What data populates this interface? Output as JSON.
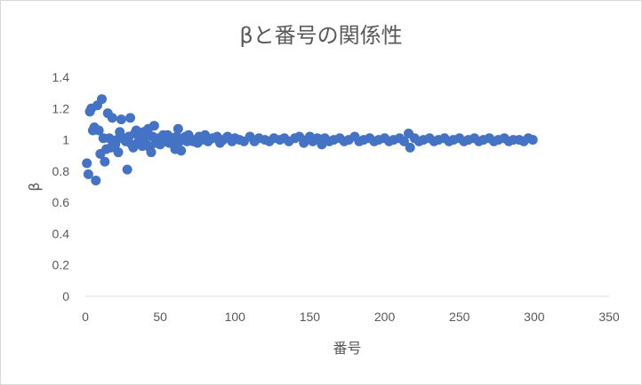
{
  "chart_data": {
    "type": "scatter",
    "title": "βと番号の関係性",
    "xlabel": "番号",
    "ylabel": "β",
    "xlim": [
      0,
      350
    ],
    "ylim": [
      0,
      1.4
    ],
    "x_ticks": [
      0,
      50,
      100,
      150,
      200,
      250,
      300,
      350
    ],
    "y_ticks": [
      0,
      0.2,
      0.4,
      0.6,
      0.8,
      1,
      1.2,
      1.4
    ],
    "x_tick_labels": [
      "0",
      "50",
      "100",
      "150",
      "200",
      "250",
      "300",
      "350"
    ],
    "y_tick_labels": [
      "0",
      "0.2",
      "0.4",
      "0.6",
      "0.8",
      "1",
      "1.2",
      "1.4"
    ],
    "grid": false,
    "legend": "none",
    "marker_color": "#4472C4",
    "series": [
      {
        "points": [
          [
            1,
            0.85
          ],
          [
            2,
            0.78
          ],
          [
            3,
            1.18
          ],
          [
            4,
            1.2
          ],
          [
            5,
            1.06
          ],
          [
            6,
            1.08
          ],
          [
            7,
            0.74
          ],
          [
            8,
            1.22
          ],
          [
            9,
            1.06
          ],
          [
            10,
            0.91
          ],
          [
            11,
            1.26
          ],
          [
            12,
            1.01
          ],
          [
            13,
            0.86
          ],
          [
            14,
            0.94
          ],
          [
            15,
            1.17
          ],
          [
            16,
            1.01
          ],
          [
            17,
            0.95
          ],
          [
            18,
            1.14
          ],
          [
            20,
            0.97
          ],
          [
            21,
            1.0
          ],
          [
            22,
            0.92
          ],
          [
            23,
            1.05
          ],
          [
            24,
            1.13
          ],
          [
            25,
            1.01
          ],
          [
            27,
            0.99
          ],
          [
            28,
            0.81
          ],
          [
            29,
            1.02
          ],
          [
            30,
            1.14
          ],
          [
            31,
            0.97
          ],
          [
            32,
            0.95
          ],
          [
            33,
            1.04
          ],
          [
            34,
            1.06
          ],
          [
            35,
            0.98
          ],
          [
            36,
            1.0
          ],
          [
            37,
            1.03
          ],
          [
            38,
            0.96
          ],
          [
            39,
            1.05
          ],
          [
            40,
            1.02
          ],
          [
            41,
            0.97
          ],
          [
            42,
            1.07
          ],
          [
            43,
            0.95
          ],
          [
            44,
            0.92
          ],
          [
            45,
            1.02
          ],
          [
            46,
            1.09
          ],
          [
            47,
            0.98
          ],
          [
            48,
            1.0
          ],
          [
            49,
            1.01
          ],
          [
            50,
            0.97
          ],
          [
            52,
            1.03
          ],
          [
            53,
            0.99
          ],
          [
            54,
            1.02
          ],
          [
            55,
            1.03
          ],
          [
            56,
            0.98
          ],
          [
            57,
            1.0
          ],
          [
            58,
            1.01
          ],
          [
            59,
            0.97
          ],
          [
            60,
            0.94
          ],
          [
            61,
            1.02
          ],
          [
            62,
            1.07
          ],
          [
            63,
            0.99
          ],
          [
            64,
            0.93
          ],
          [
            65,
            1.01
          ],
          [
            66,
            1.0
          ],
          [
            67,
            1.02
          ],
          [
            68,
            0.99
          ],
          [
            69,
            1.03
          ],
          [
            70,
            1.01
          ],
          [
            72,
            0.99
          ],
          [
            74,
            1.0
          ],
          [
            75,
            0.98
          ],
          [
            76,
            1.02
          ],
          [
            78,
            1.0
          ],
          [
            80,
            1.03
          ],
          [
            82,
            0.99
          ],
          [
            85,
            1.01
          ],
          [
            88,
            1.02
          ],
          [
            90,
            0.98
          ],
          [
            92,
            1.0
          ],
          [
            95,
            1.02
          ],
          [
            98,
            0.99
          ],
          [
            100,
            1.01
          ],
          [
            103,
            1.0
          ],
          [
            106,
            0.99
          ],
          [
            110,
            1.02
          ],
          [
            113,
            0.99
          ],
          [
            116,
            1.01
          ],
          [
            120,
            1.0
          ],
          [
            123,
            0.99
          ],
          [
            126,
            1.01
          ],
          [
            130,
            1.0
          ],
          [
            133,
            1.01
          ],
          [
            136,
            0.99
          ],
          [
            140,
            1.01
          ],
          [
            143,
            1.02
          ],
          [
            146,
            0.98
          ],
          [
            148,
            1.0
          ],
          [
            150,
            1.02
          ],
          [
            152,
            0.99
          ],
          [
            155,
            1.01
          ],
          [
            158,
            0.97
          ],
          [
            160,
            1.01
          ],
          [
            163,
            0.99
          ],
          [
            166,
            1.0
          ],
          [
            170,
            1.01
          ],
          [
            173,
            0.99
          ],
          [
            176,
            1.0
          ],
          [
            180,
            1.02
          ],
          [
            183,
            0.99
          ],
          [
            186,
            1.0
          ],
          [
            190,
            1.01
          ],
          [
            193,
            0.99
          ],
          [
            196,
            1.0
          ],
          [
            200,
            1.01
          ],
          [
            203,
            0.99
          ],
          [
            206,
            1.0
          ],
          [
            210,
            1.01
          ],
          [
            213,
            0.99
          ],
          [
            216,
            1.04
          ],
          [
            217,
            0.95
          ],
          [
            220,
            1.01
          ],
          [
            223,
            0.99
          ],
          [
            226,
            1.0
          ],
          [
            230,
            1.01
          ],
          [
            233,
            0.99
          ],
          [
            236,
            1.0
          ],
          [
            240,
            1.01
          ],
          [
            243,
            0.99
          ],
          [
            246,
            1.0
          ],
          [
            250,
            1.01
          ],
          [
            253,
            0.99
          ],
          [
            256,
            1.0
          ],
          [
            260,
            1.01
          ],
          [
            263,
            0.99
          ],
          [
            266,
            1.0
          ],
          [
            270,
            1.01
          ],
          [
            273,
            0.99
          ],
          [
            276,
            1.0
          ],
          [
            280,
            1.01
          ],
          [
            283,
            0.99
          ],
          [
            286,
            1.0
          ],
          [
            290,
            1.0
          ],
          [
            293,
            0.99
          ],
          [
            296,
            1.01
          ],
          [
            299,
            1.0
          ]
        ]
      }
    ]
  }
}
